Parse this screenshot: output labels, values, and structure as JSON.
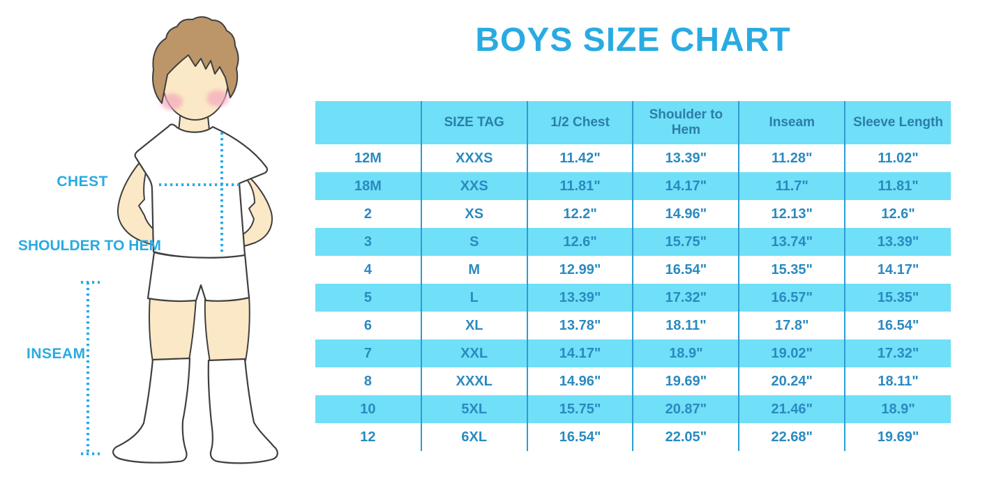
{
  "title": "BOYS SIZE CHART",
  "illustration": {
    "description": "Cartoon boy with brown hair wearing white t-shirt, shorts and knee socks, with dotted measurement guides",
    "labels": {
      "chest": "CHEST",
      "shoulder_to_hem": "SHOULDER TO HEM",
      "inseam": "INSEAM"
    }
  },
  "colors": {
    "accent": "#29ABE2",
    "table_fill": "#70DFF8",
    "header_text": "#2A7EA9",
    "cell_text": "#2A8AC0",
    "grid_line": "#2B9CD4",
    "skin": "#FBE8C6",
    "hair": "#BC9569",
    "outline": "#3F3F3F",
    "blush": "#F4A8BE"
  },
  "chart_data": {
    "type": "table",
    "title": "BOYS SIZE CHART",
    "columns": [
      "",
      "SIZE TAG",
      "1/2 Chest",
      "Shoulder to Hem",
      "Inseam",
      "Sleeve Length"
    ],
    "rows": [
      [
        "12M",
        "XXXS",
        "11.42\"",
        "13.39\"",
        "11.28\"",
        "11.02\""
      ],
      [
        "18M",
        "XXS",
        "11.81\"",
        "14.17\"",
        "11.7\"",
        "11.81\""
      ],
      [
        "2",
        "XS",
        "12.2\"",
        "14.96\"",
        "12.13\"",
        "12.6\""
      ],
      [
        "3",
        "S",
        "12.6\"",
        "15.75\"",
        "13.74\"",
        "13.39\""
      ],
      [
        "4",
        "M",
        "12.99\"",
        "16.54\"",
        "15.35\"",
        "14.17\""
      ],
      [
        "5",
        "L",
        "13.39\"",
        "17.32\"",
        "16.57\"",
        "15.35\""
      ],
      [
        "6",
        "XL",
        "13.78\"",
        "18.11\"",
        "17.8\"",
        "16.54\""
      ],
      [
        "7",
        "XXL",
        "14.17\"",
        "18.9\"",
        "19.02\"",
        "17.32\""
      ],
      [
        "8",
        "XXXL",
        "14.96\"",
        "19.69\"",
        "20.24\"",
        "18.11\""
      ],
      [
        "10",
        "5XL",
        "15.75\"",
        "20.87\"",
        "21.46\"",
        "18.9\""
      ],
      [
        "12",
        "6XL",
        "16.54\"",
        "22.05\"",
        "22.68\"",
        "19.69\""
      ]
    ],
    "row_striping": "alternating white and light cyan, header cyan",
    "grid": "vertical separators only, no outer border"
  }
}
